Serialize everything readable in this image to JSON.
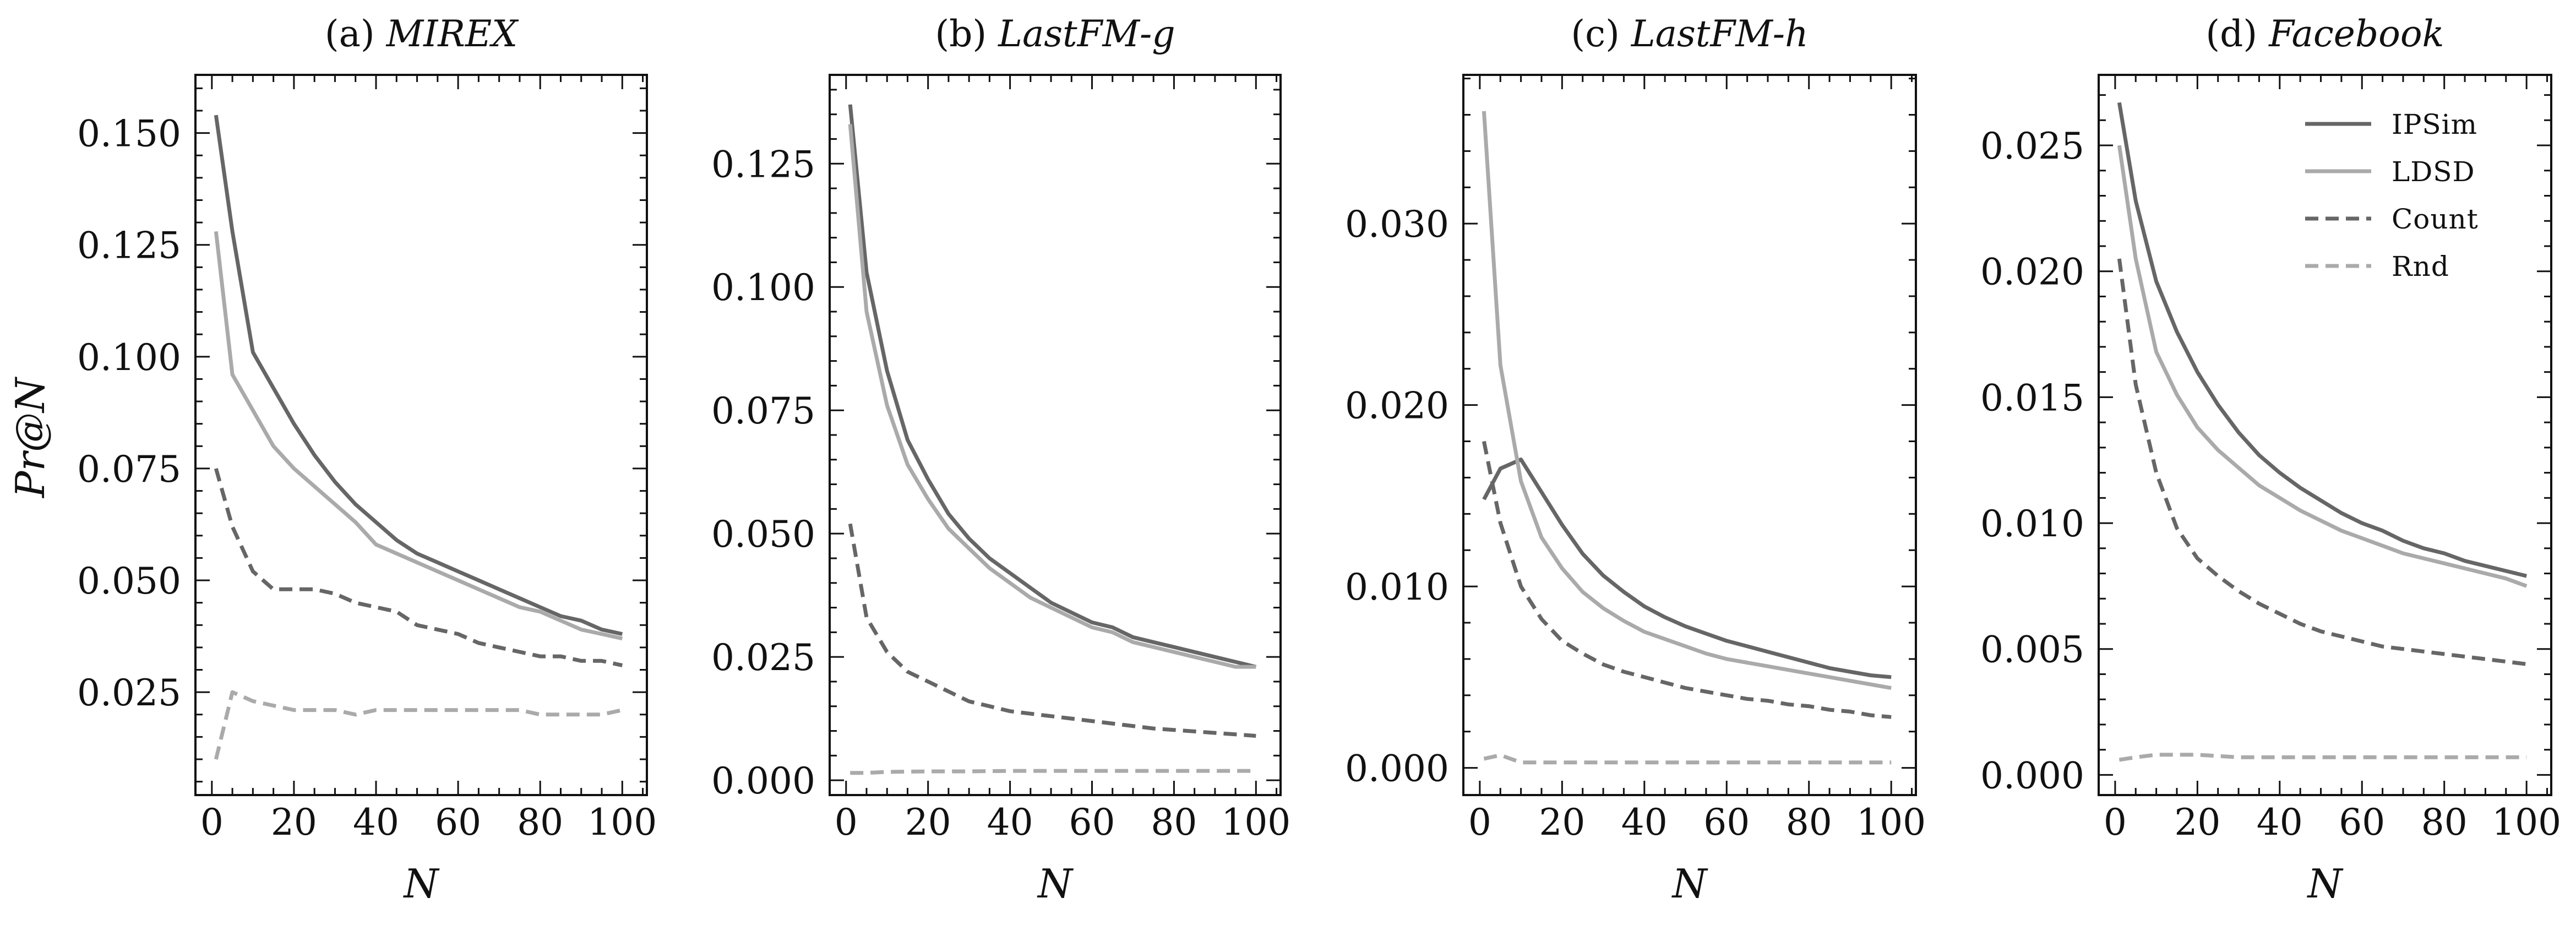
{
  "figure": {
    "y_axis_label": "Pr@N",
    "x_axis_label": "N"
  },
  "legend": {
    "placement": "upper-right of panel (d)",
    "entries": [
      {
        "label": "IPSim",
        "color": "#666666",
        "dash": "solid"
      },
      {
        "label": "LDSD",
        "color": "#aaaaaa",
        "dash": "solid"
      },
      {
        "label": "Count",
        "color": "#666666",
        "dash": "dashed"
      },
      {
        "label": "Rnd",
        "color": "#aaaaaa",
        "dash": "dashed"
      }
    ]
  },
  "chart_data": [
    {
      "type": "line",
      "title_prefix": "(a) ",
      "title_name": "MIREX",
      "xlabel": "N",
      "ylabel": "Pr@N",
      "xlim": [
        -4,
        106
      ],
      "ylim": [
        0.002,
        0.163
      ],
      "xticks": [
        0,
        20,
        40,
        60,
        80,
        100
      ],
      "xtick_labels": [
        "0",
        "20",
        "40",
        "60",
        "80",
        "100"
      ],
      "yticks": [
        0.025,
        0.05,
        0.075,
        0.1,
        0.125,
        0.15
      ],
      "ytick_labels": [
        "0.025",
        "0.050",
        "0.075",
        "0.100",
        "0.125",
        "0.150"
      ],
      "grid": false,
      "series": [
        {
          "name": "IPSim",
          "x": [
            1,
            5,
            10,
            15,
            20,
            25,
            30,
            35,
            40,
            45,
            50,
            55,
            60,
            65,
            70,
            75,
            80,
            85,
            90,
            95,
            100
          ],
          "y": [
            0.154,
            0.128,
            0.101,
            0.093,
            0.085,
            0.078,
            0.072,
            0.067,
            0.063,
            0.059,
            0.056,
            0.054,
            0.052,
            0.05,
            0.048,
            0.046,
            0.044,
            0.042,
            0.041,
            0.039,
            0.038
          ]
        },
        {
          "name": "LDSD",
          "x": [
            1,
            5,
            10,
            15,
            20,
            25,
            30,
            35,
            40,
            45,
            50,
            55,
            60,
            65,
            70,
            75,
            80,
            85,
            90,
            95,
            100
          ],
          "y": [
            0.128,
            0.096,
            0.088,
            0.08,
            0.075,
            0.071,
            0.067,
            0.063,
            0.058,
            0.056,
            0.054,
            0.052,
            0.05,
            0.048,
            0.046,
            0.044,
            0.043,
            0.041,
            0.039,
            0.038,
            0.037
          ]
        },
        {
          "name": "Count",
          "x": [
            1,
            5,
            10,
            15,
            20,
            25,
            30,
            35,
            40,
            45,
            50,
            55,
            60,
            65,
            70,
            75,
            80,
            85,
            90,
            95,
            100
          ],
          "y": [
            0.075,
            0.062,
            0.052,
            0.048,
            0.048,
            0.048,
            0.047,
            0.045,
            0.044,
            0.043,
            0.04,
            0.039,
            0.038,
            0.036,
            0.035,
            0.034,
            0.033,
            0.033,
            0.032,
            0.032,
            0.031
          ]
        },
        {
          "name": "Rnd",
          "x": [
            1,
            5,
            10,
            15,
            20,
            25,
            30,
            35,
            40,
            45,
            50,
            55,
            60,
            65,
            70,
            75,
            80,
            85,
            90,
            95,
            100
          ],
          "y": [
            0.01,
            0.025,
            0.023,
            0.022,
            0.021,
            0.021,
            0.021,
            0.02,
            0.021,
            0.021,
            0.021,
            0.021,
            0.021,
            0.021,
            0.021,
            0.021,
            0.02,
            0.02,
            0.02,
            0.02,
            0.021
          ]
        }
      ]
    },
    {
      "type": "line",
      "title_prefix": "(b) ",
      "title_name": "LastFM-g",
      "xlabel": "N",
      "ylabel": "",
      "xlim": [
        -4,
        106
      ],
      "ylim": [
        -0.003,
        0.143
      ],
      "xticks": [
        0,
        20,
        40,
        60,
        80,
        100
      ],
      "xtick_labels": [
        "0",
        "20",
        "40",
        "60",
        "80",
        "100"
      ],
      "yticks": [
        0,
        0.025,
        0.05,
        0.075,
        0.1,
        0.125
      ],
      "ytick_labels": [
        "0.000",
        "0.025",
        "0.050",
        "0.075",
        "0.100",
        "0.125"
      ],
      "grid": false,
      "series": [
        {
          "name": "IPSim",
          "x": [
            1,
            5,
            10,
            15,
            20,
            25,
            30,
            35,
            40,
            45,
            50,
            55,
            60,
            65,
            70,
            75,
            80,
            85,
            90,
            95,
            100
          ],
          "y": [
            0.137,
            0.103,
            0.083,
            0.069,
            0.061,
            0.054,
            0.049,
            0.045,
            0.042,
            0.039,
            0.036,
            0.034,
            0.032,
            0.031,
            0.029,
            0.028,
            0.027,
            0.026,
            0.025,
            0.024,
            0.023
          ]
        },
        {
          "name": "LDSD",
          "x": [
            1,
            5,
            10,
            15,
            20,
            25,
            30,
            35,
            40,
            45,
            50,
            55,
            60,
            65,
            70,
            75,
            80,
            85,
            90,
            95,
            100
          ],
          "y": [
            0.133,
            0.095,
            0.076,
            0.064,
            0.057,
            0.051,
            0.047,
            0.043,
            0.04,
            0.037,
            0.035,
            0.033,
            0.031,
            0.03,
            0.028,
            0.027,
            0.026,
            0.025,
            0.024,
            0.023,
            0.023
          ]
        },
        {
          "name": "Count",
          "x": [
            1,
            5,
            10,
            15,
            20,
            25,
            30,
            35,
            40,
            45,
            50,
            55,
            60,
            65,
            70,
            75,
            80,
            85,
            90,
            95,
            100
          ],
          "y": [
            0.052,
            0.033,
            0.026,
            0.022,
            0.02,
            0.018,
            0.016,
            0.015,
            0.014,
            0.0135,
            0.013,
            0.0125,
            0.012,
            0.0115,
            0.011,
            0.0105,
            0.0102,
            0.0099,
            0.0096,
            0.0093,
            0.009
          ]
        },
        {
          "name": "Rnd",
          "x": [
            1,
            5,
            10,
            20,
            30,
            40,
            50,
            60,
            70,
            80,
            90,
            100
          ],
          "y": [
            0.0015,
            0.0015,
            0.0017,
            0.0018,
            0.0018,
            0.0019,
            0.0019,
            0.0019,
            0.0019,
            0.0019,
            0.0019,
            0.0019
          ]
        }
      ]
    },
    {
      "type": "line",
      "title_prefix": "(c) ",
      "title_name": "LastFM-h",
      "xlabel": "N",
      "ylabel": "",
      "xlim": [
        -4,
        106
      ],
      "ylim": [
        -0.0015,
        0.0382
      ],
      "xticks": [
        0,
        20,
        40,
        60,
        80,
        100
      ],
      "xtick_labels": [
        "0",
        "20",
        "40",
        "60",
        "80",
        "100"
      ],
      "yticks": [
        0,
        0.01,
        0.02,
        0.03
      ],
      "ytick_labels": [
        "0.000",
        "0.010",
        "0.020",
        "0.030"
      ],
      "grid": false,
      "series": [
        {
          "name": "IPSim",
          "x": [
            1,
            5,
            10,
            15,
            20,
            25,
            30,
            35,
            40,
            45,
            50,
            55,
            60,
            65,
            70,
            75,
            80,
            85,
            90,
            95,
            100
          ],
          "y": [
            0.0148,
            0.0165,
            0.017,
            0.0152,
            0.0134,
            0.0118,
            0.0106,
            0.0097,
            0.0089,
            0.0083,
            0.0078,
            0.0074,
            0.007,
            0.0067,
            0.0064,
            0.0061,
            0.0058,
            0.0055,
            0.0053,
            0.0051,
            0.005
          ]
        },
        {
          "name": "LDSD",
          "x": [
            1,
            5,
            10,
            15,
            20,
            25,
            30,
            35,
            40,
            45,
            50,
            55,
            60,
            65,
            70,
            75,
            80,
            85,
            90,
            95,
            100
          ],
          "y": [
            0.0362,
            0.0222,
            0.0158,
            0.0127,
            0.011,
            0.0097,
            0.0088,
            0.0081,
            0.0075,
            0.0071,
            0.0067,
            0.0063,
            0.006,
            0.0058,
            0.0056,
            0.0054,
            0.0052,
            0.005,
            0.0048,
            0.0046,
            0.0044
          ]
        },
        {
          "name": "Count",
          "x": [
            1,
            5,
            10,
            15,
            20,
            25,
            30,
            35,
            40,
            45,
            50,
            55,
            60,
            65,
            70,
            75,
            80,
            85,
            90,
            95,
            100
          ],
          "y": [
            0.018,
            0.0135,
            0.01,
            0.0082,
            0.007,
            0.0063,
            0.0057,
            0.0053,
            0.005,
            0.0047,
            0.0044,
            0.0042,
            0.004,
            0.0038,
            0.0037,
            0.0035,
            0.0034,
            0.0032,
            0.0031,
            0.0029,
            0.0028
          ]
        },
        {
          "name": "Rnd",
          "x": [
            1,
            5,
            10,
            20,
            30,
            40,
            50,
            60,
            70,
            80,
            90,
            100
          ],
          "y": [
            0.0005,
            0.0007,
            0.0003,
            0.0003,
            0.0003,
            0.0003,
            0.0003,
            0.0003,
            0.0003,
            0.0003,
            0.0003,
            0.0003
          ]
        }
      ]
    },
    {
      "type": "line",
      "title_prefix": "(d) ",
      "title_name": "Facebook",
      "xlabel": "N",
      "ylabel": "",
      "xlim": [
        -4,
        106
      ],
      "ylim": [
        -0.0008,
        0.0278
      ],
      "xticks": [
        0,
        20,
        40,
        60,
        80,
        100
      ],
      "xtick_labels": [
        "0",
        "20",
        "40",
        "60",
        "80",
        "100"
      ],
      "yticks": [
        0,
        0.005,
        0.01,
        0.015,
        0.02,
        0.025
      ],
      "ytick_labels": [
        "0.000",
        "0.005",
        "0.010",
        "0.015",
        "0.020",
        "0.025"
      ],
      "grid": false,
      "series": [
        {
          "name": "IPSim",
          "x": [
            1,
            5,
            10,
            15,
            20,
            25,
            30,
            35,
            40,
            45,
            50,
            55,
            60,
            65,
            70,
            75,
            80,
            85,
            90,
            95,
            100
          ],
          "y": [
            0.0267,
            0.0228,
            0.0196,
            0.0176,
            0.016,
            0.0147,
            0.0136,
            0.0127,
            0.012,
            0.0114,
            0.0109,
            0.0104,
            0.01,
            0.0097,
            0.0093,
            0.009,
            0.0088,
            0.0085,
            0.0083,
            0.0081,
            0.0079
          ]
        },
        {
          "name": "LDSD",
          "x": [
            1,
            5,
            10,
            15,
            20,
            25,
            30,
            35,
            40,
            45,
            50,
            55,
            60,
            65,
            70,
            75,
            80,
            85,
            90,
            95,
            100
          ],
          "y": [
            0.025,
            0.0205,
            0.0168,
            0.0151,
            0.0138,
            0.0129,
            0.0122,
            0.0115,
            0.011,
            0.0105,
            0.0101,
            0.0097,
            0.0094,
            0.0091,
            0.0088,
            0.0086,
            0.0084,
            0.0082,
            0.008,
            0.0078,
            0.0075
          ]
        },
        {
          "name": "Count",
          "x": [
            1,
            5,
            10,
            15,
            20,
            25,
            30,
            35,
            40,
            45,
            50,
            55,
            60,
            65,
            70,
            75,
            80,
            85,
            90,
            95,
            100
          ],
          "y": [
            0.0205,
            0.0155,
            0.012,
            0.0098,
            0.0086,
            0.0079,
            0.0073,
            0.0068,
            0.0064,
            0.006,
            0.0057,
            0.0055,
            0.0053,
            0.0051,
            0.005,
            0.0049,
            0.0048,
            0.0047,
            0.0046,
            0.0045,
            0.0044
          ]
        },
        {
          "name": "Rnd",
          "x": [
            1,
            5,
            10,
            20,
            30,
            40,
            50,
            60,
            70,
            80,
            90,
            100
          ],
          "y": [
            0.0006,
            0.0007,
            0.0008,
            0.0008,
            0.0007,
            0.0007,
            0.0007,
            0.0007,
            0.0007,
            0.0007,
            0.0007,
            0.0007
          ]
        }
      ]
    }
  ]
}
